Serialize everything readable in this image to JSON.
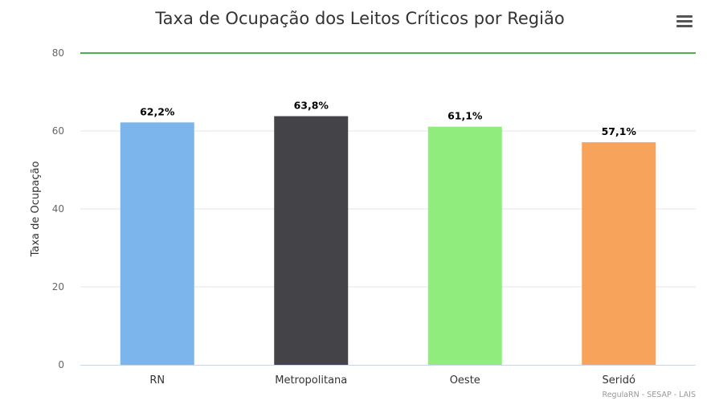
{
  "chart_data": {
    "type": "bar",
    "title": "Taxa de Ocupação dos Leitos Críticos por Região",
    "ylabel": "Taxa de Ocupação",
    "xlabel": "",
    "ylim": [
      0,
      80
    ],
    "yticks": [
      0,
      20,
      40,
      60,
      80
    ],
    "grid": true,
    "categories": [
      "RN",
      "Metropolitana",
      "Oeste",
      "Seridó"
    ],
    "values": [
      62.2,
      63.8,
      61.1,
      57.1
    ],
    "data_labels": [
      "62,2%",
      "63,8%",
      "61,1%",
      "57,1%"
    ],
    "colors": [
      "#7cb5ec",
      "#434348",
      "#90ed7d",
      "#f7a35c"
    ],
    "reference_line": {
      "value": 80,
      "color": "#4caf50"
    },
    "credits": "RegulaRN - SESAP - LAIS"
  },
  "menu": {
    "icon": "hamburger-menu-icon"
  }
}
